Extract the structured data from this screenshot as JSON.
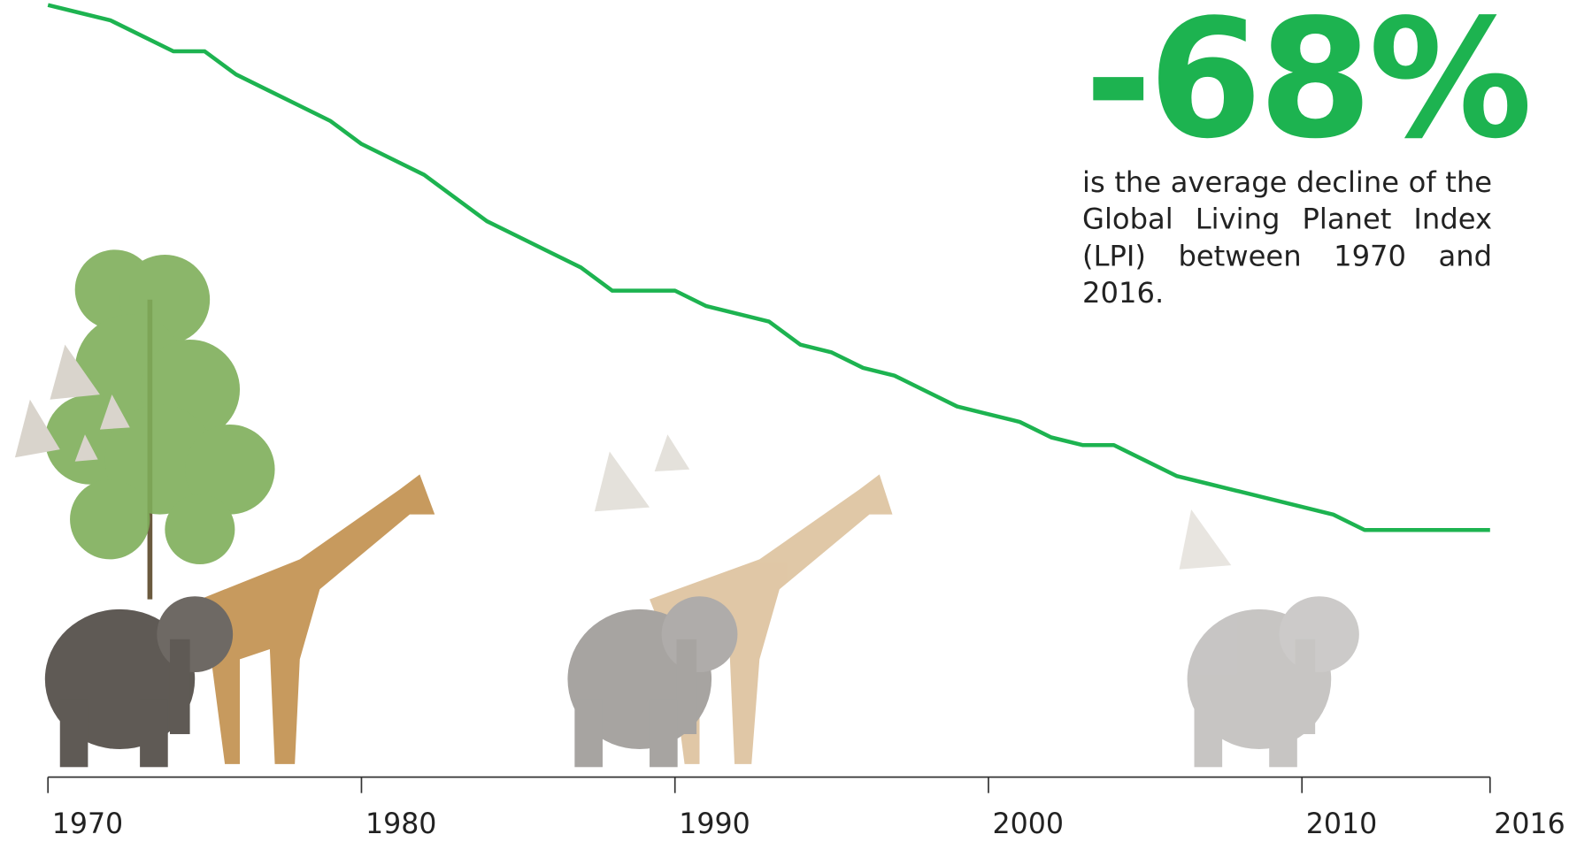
{
  "chart_data": {
    "type": "line",
    "headline": "-68%",
    "description": "is the average decline of the Global Living Planet Index (LPI) between 1970 and 2016.",
    "x": [
      1970,
      1971,
      1972,
      1973,
      1974,
      1975,
      1976,
      1977,
      1978,
      1979,
      1980,
      1981,
      1982,
      1983,
      1984,
      1985,
      1986,
      1987,
      1988,
      1989,
      1990,
      1991,
      1992,
      1993,
      1994,
      1995,
      1996,
      1997,
      1998,
      1999,
      2000,
      2001,
      2002,
      2003,
      2004,
      2005,
      2006,
      2007,
      2008,
      2009,
      2010,
      2011,
      2012,
      2013,
      2014,
      2015,
      2016
    ],
    "values": [
      1.0,
      0.99,
      0.98,
      0.96,
      0.94,
      0.94,
      0.91,
      0.89,
      0.87,
      0.85,
      0.82,
      0.8,
      0.78,
      0.75,
      0.72,
      0.7,
      0.68,
      0.66,
      0.63,
      0.63,
      0.63,
      0.61,
      0.6,
      0.59,
      0.56,
      0.55,
      0.53,
      0.52,
      0.5,
      0.48,
      0.47,
      0.46,
      0.44,
      0.43,
      0.43,
      0.41,
      0.39,
      0.38,
      0.37,
      0.36,
      0.35,
      0.34,
      0.32,
      0.32,
      0.32,
      0.32,
      0.32
    ],
    "color": "#1db350",
    "xlim": [
      1970,
      2016
    ],
    "xticks": [
      1970,
      1980,
      1990,
      2000,
      2010,
      2016
    ],
    "ylim": [
      0,
      1
    ]
  }
}
